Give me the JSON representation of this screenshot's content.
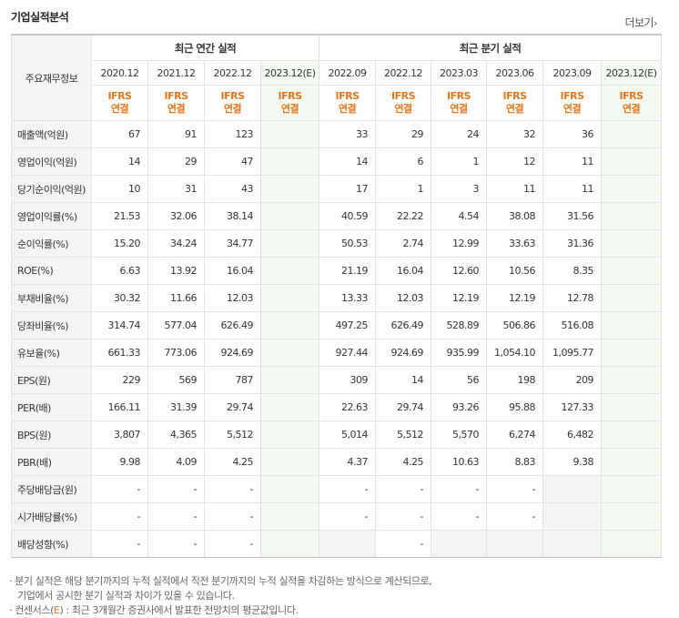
{
  "title": "기업실적분석",
  "more_label": "더보기",
  "header": {
    "row_label": "주요재무정보",
    "annual_group": "최근 연간 실적",
    "quarterly_group": "최근 분기 실적",
    "annual_periods": [
      "2020.12",
      "2021.12",
      "2022.12",
      "2023.12(E)"
    ],
    "quarterly_periods": [
      "2022.09",
      "2022.12",
      "2023.03",
      "2023.06",
      "2023.09",
      "2023.12(E)"
    ],
    "ifrs_line1": "IFRS",
    "ifrs_line2": "연결"
  },
  "rows": [
    {
      "label": "매출액(억원)",
      "annual": [
        "67",
        "91",
        "123",
        ""
      ],
      "quarterly": [
        "33",
        "29",
        "24",
        "32",
        "36",
        ""
      ]
    },
    {
      "label": "영업이익(억원)",
      "annual": [
        "14",
        "29",
        "47",
        ""
      ],
      "quarterly": [
        "14",
        "6",
        "1",
        "12",
        "11",
        ""
      ]
    },
    {
      "label": "당기순이익(억원)",
      "annual": [
        "10",
        "31",
        "43",
        ""
      ],
      "quarterly": [
        "17",
        "1",
        "3",
        "11",
        "11",
        ""
      ]
    },
    {
      "label": "영업이익률(%)",
      "annual": [
        "21.53",
        "32.06",
        "38.14",
        ""
      ],
      "quarterly": [
        "40.59",
        "22.22",
        "4.54",
        "38.08",
        "31.56",
        ""
      ]
    },
    {
      "label": "순이익률(%)",
      "annual": [
        "15.20",
        "34.24",
        "34.77",
        ""
      ],
      "quarterly": [
        "50.53",
        "2.74",
        "12.99",
        "33.63",
        "31.36",
        ""
      ]
    },
    {
      "label": "ROE(%)",
      "annual": [
        "6.63",
        "13.92",
        "16.04",
        ""
      ],
      "quarterly": [
        "21.19",
        "16.04",
        "12.60",
        "10.56",
        "8.35",
        ""
      ]
    },
    {
      "label": "부채비율(%)",
      "annual": [
        "30.32",
        "11.66",
        "12.03",
        ""
      ],
      "quarterly": [
        "13.33",
        "12.03",
        "12.19",
        "12.19",
        "12.78",
        ""
      ]
    },
    {
      "label": "당좌비율(%)",
      "annual": [
        "314.74",
        "577.04",
        "626.49",
        ""
      ],
      "quarterly": [
        "497.25",
        "626.49",
        "528.89",
        "506.86",
        "516.08",
        ""
      ]
    },
    {
      "label": "유보율(%)",
      "annual": [
        "661.33",
        "773.06",
        "924.69",
        ""
      ],
      "quarterly": [
        "927.44",
        "924.69",
        "935.99",
        "1,054.10",
        "1,095.77",
        ""
      ]
    },
    {
      "label": "EPS(원)",
      "annual": [
        "229",
        "569",
        "787",
        ""
      ],
      "quarterly": [
        "309",
        "14",
        "56",
        "198",
        "209",
        ""
      ]
    },
    {
      "label": "PER(배)",
      "annual": [
        "166.11",
        "31.39",
        "29.74",
        ""
      ],
      "quarterly": [
        "22.63",
        "29.74",
        "93.26",
        "95.88",
        "127.33",
        ""
      ]
    },
    {
      "label": "BPS(원)",
      "annual": [
        "3,807",
        "4,365",
        "5,512",
        ""
      ],
      "quarterly": [
        "5,014",
        "5,512",
        "5,570",
        "6,274",
        "6,482",
        ""
      ]
    },
    {
      "label": "PBR(배)",
      "annual": [
        "9.98",
        "4.09",
        "4.25",
        ""
      ],
      "quarterly": [
        "4.37",
        "4.25",
        "10.63",
        "8.83",
        "9.38",
        ""
      ]
    },
    {
      "label": "주당배당금(원)",
      "annual": [
        "-",
        "-",
        "-",
        ""
      ],
      "quarterly": [
        "-",
        "-",
        "-",
        "-",
        "",
        ""
      ]
    },
    {
      "label": "시가배당률(%)",
      "annual": [
        "-",
        "-",
        "-",
        ""
      ],
      "quarterly": [
        "-",
        "-",
        "-",
        "-",
        "",
        ""
      ]
    },
    {
      "label": "배당성향(%)",
      "annual": [
        "-",
        "-",
        "-",
        ""
      ],
      "quarterly": [
        "",
        "-",
        "",
        "",
        "",
        ""
      ]
    }
  ],
  "notes": {
    "line1": "· 분기 실적은 해당 분기까지의 누적 실적에서 직전 분기까지의 누적 실적을 차감하는 방식으로 계산되므로,",
    "line2": "  기업에서 공시한 분기 실적과 차이가 있을 수 있습니다.",
    "line3_prefix": "· 컨센서스(",
    "line3_e": "E",
    "line3_suffix": ") : 최근 3개월간 증권사에서 발표한 전망치의 평균값입니다."
  }
}
